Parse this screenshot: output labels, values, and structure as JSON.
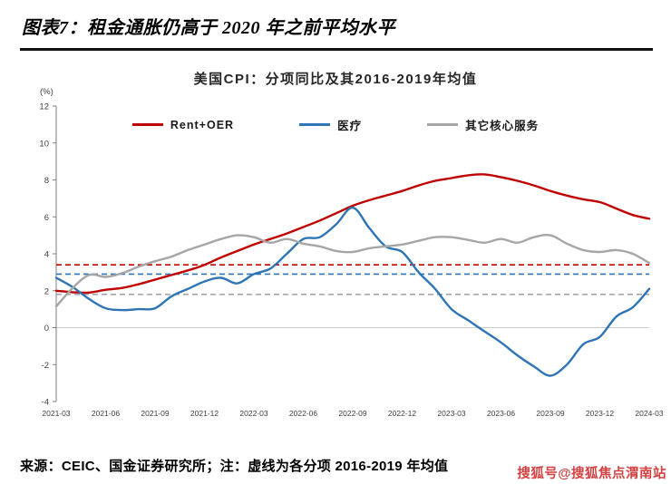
{
  "header": {
    "title": "图表7：租金通胀仍高于 2020 年之前平均水平"
  },
  "footer": {
    "source": "来源：CEIC、国金证券研究所；注：虚线为各分项 2016-2019 年均值",
    "watermark": "搜狐号@搜狐焦点渭南站"
  },
  "chart_data": {
    "type": "line",
    "title": "美国CPI：分项同比及其2016-2019年均值",
    "y_unit_label": "(%)",
    "ylim": [
      -4,
      12
    ],
    "y_ticks": [
      12,
      10,
      8,
      6,
      4,
      2,
      0,
      -2,
      -4
    ],
    "grid": "zero-line-only",
    "legend_position": "top-inside",
    "x_tick_labels": [
      "2021-03",
      "2021-06",
      "2021-09",
      "2021-12",
      "2022-03",
      "2022-06",
      "2022-09",
      "2022-12",
      "2023-03",
      "2023-06",
      "2023-09",
      "2023-12",
      "2024-03"
    ],
    "x_frequency": "monthly",
    "series": [
      {
        "key": "rent-oer",
        "name": "Rent+OER",
        "color": "#c00000",
        "values": [
          2.0,
          1.92,
          1.9,
          2.05,
          2.15,
          2.35,
          2.6,
          2.85,
          3.1,
          3.4,
          3.8,
          4.15,
          4.5,
          4.8,
          5.1,
          5.45,
          5.8,
          6.2,
          6.6,
          6.9,
          7.15,
          7.4,
          7.7,
          7.95,
          8.1,
          8.25,
          8.3,
          8.15,
          7.95,
          7.7,
          7.4,
          7.15,
          6.95,
          6.8,
          6.45,
          6.1,
          5.9
        ]
      },
      {
        "key": "medical",
        "name": "医疗",
        "color": "#2e75b6",
        "values": [
          2.7,
          2.2,
          1.55,
          1.05,
          0.95,
          1.0,
          1.05,
          1.7,
          2.1,
          2.5,
          2.7,
          2.4,
          2.9,
          3.2,
          4.0,
          4.8,
          4.9,
          5.6,
          6.5,
          5.4,
          4.4,
          4.1,
          3.0,
          2.1,
          1.0,
          0.4,
          -0.2,
          -0.8,
          -1.5,
          -2.1,
          -2.6,
          -2.0,
          -0.9,
          -0.5,
          0.6,
          1.1,
          2.1
        ]
      },
      {
        "key": "other-core-services",
        "name": "其它核心服务",
        "color": "#a6a6a6",
        "values": [
          1.15,
          2.15,
          2.85,
          2.75,
          2.95,
          3.3,
          3.6,
          3.85,
          4.2,
          4.5,
          4.8,
          5.0,
          4.9,
          4.6,
          4.8,
          4.55,
          4.4,
          4.15,
          4.1,
          4.3,
          4.4,
          4.5,
          4.7,
          4.9,
          4.9,
          4.75,
          4.6,
          4.8,
          4.6,
          4.9,
          5.0,
          4.55,
          4.2,
          4.1,
          4.2,
          4.0,
          3.5
        ]
      }
    ],
    "average_lines": [
      {
        "key": "rent-oer-avg",
        "name": "Rent+OER 2016-2019均值",
        "color": "#c00000",
        "value": 3.4
      },
      {
        "key": "medical-avg",
        "name": "医疗 2016-2019均值",
        "color": "#2e75b6",
        "value": 2.9
      },
      {
        "key": "other-core-services-avg",
        "name": "其它核心服务 2016-2019均值",
        "color": "#a6a6a6",
        "value": 1.8
      }
    ]
  }
}
